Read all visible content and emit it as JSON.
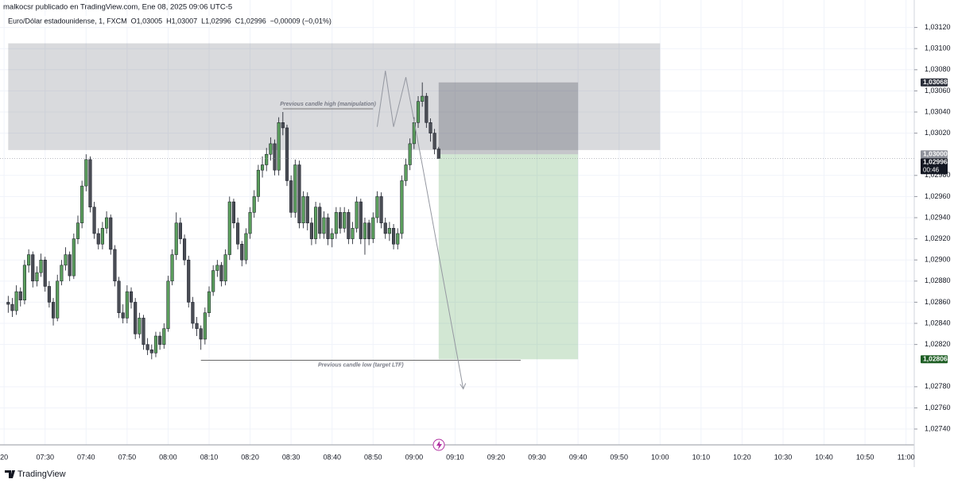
{
  "chart_data": {
    "type": "candlestick",
    "header": "malkocsr publicado en TradingView.com, Ene 08, 2025 09:06 UTC-5",
    "legend": [
      "Euro/Dólar estadounidense, 1, FXCM",
      "O1,03005",
      "H1,03007",
      "L1,02996",
      "C1,02996",
      "−0,00009 (−0,01%)"
    ],
    "brand": "TradingView",
    "up_color": "#5b9e5d",
    "down_color": "#4a4d55",
    "xlim": [
      "07:19",
      "11:02"
    ],
    "ylim": [
      1.02725,
      1.03146
    ],
    "grid": true,
    "xticks": [
      {
        "value": "07:20",
        "label": "20"
      },
      "07:30",
      "07:40",
      "07:50",
      "08:00",
      "08:10",
      "08:20",
      "08:30",
      "08:40",
      "08:50",
      "09:00",
      "09:10",
      "09:20",
      "09:30",
      "09:40",
      "09:50",
      "10:00",
      "10:10",
      "10:20",
      "10:30",
      "10:40",
      "10:50",
      "11:00"
    ],
    "yticks": [
      {
        "value": 1.0274,
        "label": "1,02740"
      },
      {
        "value": 1.0276,
        "label": "1,02760"
      },
      {
        "value": 1.0278,
        "label": "1,02780"
      },
      {
        "value": 1.0282,
        "label": "1,02820"
      },
      {
        "value": 1.0284,
        "label": "1,02840"
      },
      {
        "value": 1.0286,
        "label": "1,02860"
      },
      {
        "value": 1.0288,
        "label": "1,02880"
      },
      {
        "value": 1.029,
        "label": "1,02900"
      },
      {
        "value": 1.0292,
        "label": "1,02920"
      },
      {
        "value": 1.0294,
        "label": "1,02940"
      },
      {
        "value": 1.0296,
        "label": "1,02960"
      },
      {
        "value": 1.0298,
        "label": "1,02980"
      },
      {
        "value": 1.0302,
        "label": "1,03020"
      },
      {
        "value": 1.0304,
        "label": "1,03040"
      },
      {
        "value": 1.0306,
        "label": "1,03060"
      },
      {
        "value": 1.0308,
        "label": "1,03080"
      },
      {
        "value": 1.031,
        "label": "1,03100"
      },
      {
        "value": 1.0312,
        "label": "1,03120"
      }
    ],
    "x": [
      "07:21",
      "07:22",
      "07:23",
      "07:24",
      "07:25",
      "07:26",
      "07:27",
      "07:28",
      "07:29",
      "07:30",
      "07:31",
      "07:32",
      "07:33",
      "07:34",
      "07:35",
      "07:36",
      "07:37",
      "07:38",
      "07:39",
      "07:40",
      "07:41",
      "07:42",
      "07:43",
      "07:44",
      "07:45",
      "07:46",
      "07:47",
      "07:48",
      "07:49",
      "07:50",
      "07:51",
      "07:52",
      "07:53",
      "07:54",
      "07:55",
      "07:56",
      "07:57",
      "07:58",
      "07:59",
      "08:00",
      "08:01",
      "08:02",
      "08:03",
      "08:04",
      "08:05",
      "08:06",
      "08:07",
      "08:08",
      "08:09",
      "08:10",
      "08:11",
      "08:12",
      "08:13",
      "08:14",
      "08:15",
      "08:16",
      "08:17",
      "08:18",
      "08:19",
      "08:20",
      "08:21",
      "08:22",
      "08:23",
      "08:24",
      "08:25",
      "08:26",
      "08:27",
      "08:28",
      "08:29",
      "08:30",
      "08:31",
      "08:32",
      "08:33",
      "08:34",
      "08:35",
      "08:36",
      "08:37",
      "08:38",
      "08:39",
      "08:40",
      "08:41",
      "08:42",
      "08:43",
      "08:44",
      "08:45",
      "08:46",
      "08:47",
      "08:48",
      "08:49",
      "08:50",
      "08:51",
      "08:52",
      "08:53",
      "08:54",
      "08:55",
      "08:56",
      "08:57",
      "08:58",
      "08:59",
      "09:00",
      "09:01",
      "09:02",
      "09:03",
      "09:04",
      "09:05",
      "09:06"
    ],
    "open": [
      1.0286,
      1.02858,
      1.02852,
      1.0287,
      1.02862,
      1.02895,
      1.02905,
      1.0288,
      1.02888,
      1.029,
      1.02875,
      1.0286,
      1.02845,
      1.0288,
      1.02895,
      1.02905,
      1.02885,
      1.0292,
      1.02935,
      1.0297,
      1.02995,
      1.0295,
      1.02925,
      1.02915,
      1.0293,
      1.0294,
      1.0291,
      1.0288,
      1.0285,
      1.02845,
      1.0287,
      1.0286,
      1.0283,
      1.02845,
      1.0282,
      1.02815,
      1.02812,
      1.02828,
      1.0282,
      1.02835,
      1.0288,
      1.02905,
      1.02935,
      1.0292,
      1.029,
      1.0286,
      1.0284,
      1.02835,
      1.02825,
      1.0285,
      1.0287,
      1.0289,
      1.02895,
      1.0288,
      1.02905,
      1.02955,
      1.02935,
      1.02915,
      1.029,
      1.02925,
      1.02945,
      1.0296,
      1.02985,
      1.0299,
      1.03,
      1.0301,
      1.02985,
      1.0303,
      1.03025,
      1.02975,
      1.02945,
      1.0299,
      1.02935,
      1.0296,
      1.02935,
      1.0292,
      1.0295,
      1.02925,
      1.0294,
      1.0292,
      1.02925,
      1.02945,
      1.0293,
      1.02945,
      1.0292,
      1.0293,
      1.02955,
      1.0292,
      1.02935,
      1.0292,
      1.0294,
      1.0296,
      1.02935,
      1.02925,
      1.0293,
      1.02915,
      1.02925,
      1.02975,
      1.0299,
      1.0301,
      1.0303,
      1.0305,
      1.03055,
      1.0303,
      1.0302,
      1.03005
    ],
    "high": [
      1.02866,
      1.02864,
      1.02876,
      1.02874,
      1.029,
      1.0291,
      1.02908,
      1.02894,
      1.02906,
      1.02903,
      1.0288,
      1.02864,
      1.02886,
      1.029,
      1.02912,
      1.02908,
      1.02925,
      1.02942,
      1.02975,
      1.03,
      1.02998,
      1.02955,
      1.0293,
      1.02936,
      1.02946,
      1.02943,
      1.02914,
      1.02884,
      1.02858,
      1.02876,
      1.02874,
      1.02864,
      1.0285,
      1.02848,
      1.02826,
      1.0282,
      1.02832,
      1.02832,
      1.0284,
      1.02885,
      1.0291,
      1.02945,
      1.0294,
      1.02924,
      1.02904,
      1.02865,
      1.02846,
      1.02838,
      1.02855,
      1.02875,
      1.02895,
      1.029,
      1.02898,
      1.0291,
      1.0296,
      1.02958,
      1.0294,
      1.02918,
      1.0293,
      1.0295,
      1.02966,
      1.0299,
      1.02998,
      1.03006,
      1.03016,
      1.03014,
      1.03035,
      1.0304,
      1.03028,
      1.0298,
      1.02995,
      1.02994,
      1.02965,
      1.02964,
      1.0294,
      1.02955,
      1.02954,
      1.02946,
      1.02944,
      1.0293,
      1.0295,
      1.0295,
      1.0295,
      1.02948,
      1.02936,
      1.0296,
      1.02958,
      1.0294,
      1.02938,
      1.02945,
      1.02965,
      1.02964,
      1.0294,
      1.02936,
      1.02934,
      1.0293,
      1.0298,
      1.02996,
      1.03015,
      1.03035,
      1.03055,
      1.03068,
      1.03058,
      1.03034,
      1.03024,
      1.03007
    ],
    "low": [
      1.0285,
      1.02846,
      1.02848,
      1.02856,
      1.02858,
      1.02888,
      1.02874,
      1.02875,
      1.02884,
      1.0287,
      1.02855,
      1.02838,
      1.02842,
      1.02876,
      1.0289,
      1.0288,
      1.02882,
      1.02915,
      1.0293,
      1.02965,
      1.02945,
      1.0292,
      1.0291,
      1.0291,
      1.02925,
      1.02905,
      1.02875,
      1.02845,
      1.0284,
      1.0284,
      1.02854,
      1.02825,
      1.02826,
      1.02815,
      1.0281,
      1.02806,
      1.02808,
      1.02815,
      1.02816,
      1.02832,
      1.02876,
      1.029,
      1.02915,
      1.02895,
      1.02855,
      1.02835,
      1.02828,
      1.02815,
      1.0282,
      1.02846,
      1.02866,
      1.02884,
      1.02875,
      1.02876,
      1.029,
      1.0293,
      1.0291,
      1.02894,
      1.02896,
      1.0292,
      1.0294,
      1.02955,
      1.02978,
      1.02984,
      1.02994,
      1.0298,
      1.0298,
      1.03018,
      1.0297,
      1.0294,
      1.0294,
      1.0293,
      1.0293,
      1.02928,
      1.02914,
      1.02915,
      1.0292,
      1.0292,
      1.02914,
      1.02912,
      1.0292,
      1.02925,
      1.02926,
      1.02915,
      1.02915,
      1.02926,
      1.02915,
      1.02905,
      1.02914,
      1.02916,
      1.02935,
      1.0293,
      1.0292,
      1.02918,
      1.0291,
      1.0291,
      1.0292,
      1.0297,
      1.02985,
      1.03005,
      1.03025,
      1.03045,
      1.03025,
      1.03012,
      1.03,
      1.02996
    ],
    "close": [
      1.02858,
      1.02852,
      1.0287,
      1.02862,
      1.02895,
      1.02905,
      1.0288,
      1.02888,
      1.029,
      1.02875,
      1.0286,
      1.02845,
      1.0288,
      1.02895,
      1.02905,
      1.02885,
      1.0292,
      1.02935,
      1.0297,
      1.02995,
      1.0295,
      1.02925,
      1.02915,
      1.0293,
      1.0294,
      1.0291,
      1.0288,
      1.0285,
      1.02845,
      1.0287,
      1.0286,
      1.0283,
      1.02845,
      1.0282,
      1.02815,
      1.02812,
      1.02828,
      1.0282,
      1.02835,
      1.0288,
      1.02905,
      1.02935,
      1.0292,
      1.029,
      1.0286,
      1.0284,
      1.02835,
      1.02825,
      1.0285,
      1.0287,
      1.0289,
      1.02895,
      1.0288,
      1.02905,
      1.02955,
      1.02935,
      1.02915,
      1.029,
      1.02925,
      1.02945,
      1.0296,
      1.02985,
      1.0299,
      1.03,
      1.0301,
      1.02985,
      1.0303,
      1.03025,
      1.02975,
      1.02945,
      1.0299,
      1.02935,
      1.0296,
      1.02935,
      1.0292,
      1.0295,
      1.02925,
      1.0294,
      1.0292,
      1.02925,
      1.02945,
      1.0293,
      1.02945,
      1.0292,
      1.0293,
      1.02955,
      1.0292,
      1.02935,
      1.0292,
      1.0294,
      1.0296,
      1.02935,
      1.02925,
      1.0293,
      1.02915,
      1.02925,
      1.02975,
      1.0299,
      1.0301,
      1.0303,
      1.0305,
      1.03055,
      1.0303,
      1.0302,
      1.03005,
      1.02996
    ],
    "zone": {
      "x": [
        "07:21",
        "10:00"
      ],
      "y": [
        1.03004,
        1.03105
      ],
      "color": "rgba(120,123,134,0.28)"
    },
    "position": {
      "x": [
        "09:06",
        "09:40"
      ],
      "entry": 1.03,
      "stop": 1.03068,
      "target": 1.02806,
      "stop_color": "rgba(90,93,104,0.35)",
      "target_color": "rgba(76,160,80,0.25)"
    },
    "annotations": [
      {
        "text": "Previous candle high (manipulation)",
        "x": [
          "08:28",
          "08:50"
        ],
        "y": 1.03043,
        "side": "above"
      },
      {
        "text": "Previous candle low (target LTF)",
        "x": [
          "08:08",
          "09:26"
        ],
        "y": 1.02805,
        "side": "below"
      }
    ],
    "projection": {
      "x": [
        "08:51",
        "08:53",
        "08:55",
        "08:58",
        "09:02",
        "09:12"
      ],
      "y": [
        1.03026,
        1.03079,
        1.03026,
        1.03073,
        1.0299,
        1.02778
      ]
    },
    "price_labels": [
      {
        "value": 1.03068,
        "label": "1,03068",
        "color": "#2a2e39"
      },
      {
        "value": 1.03,
        "label": "1,03000",
        "color": "#8f929b"
      },
      {
        "value": 1.02996,
        "label": "1,02996",
        "color": "#131722",
        "countdown": "00:46"
      },
      {
        "value": 1.02806,
        "label": "1,02806",
        "color": "#1e5e24"
      }
    ]
  }
}
